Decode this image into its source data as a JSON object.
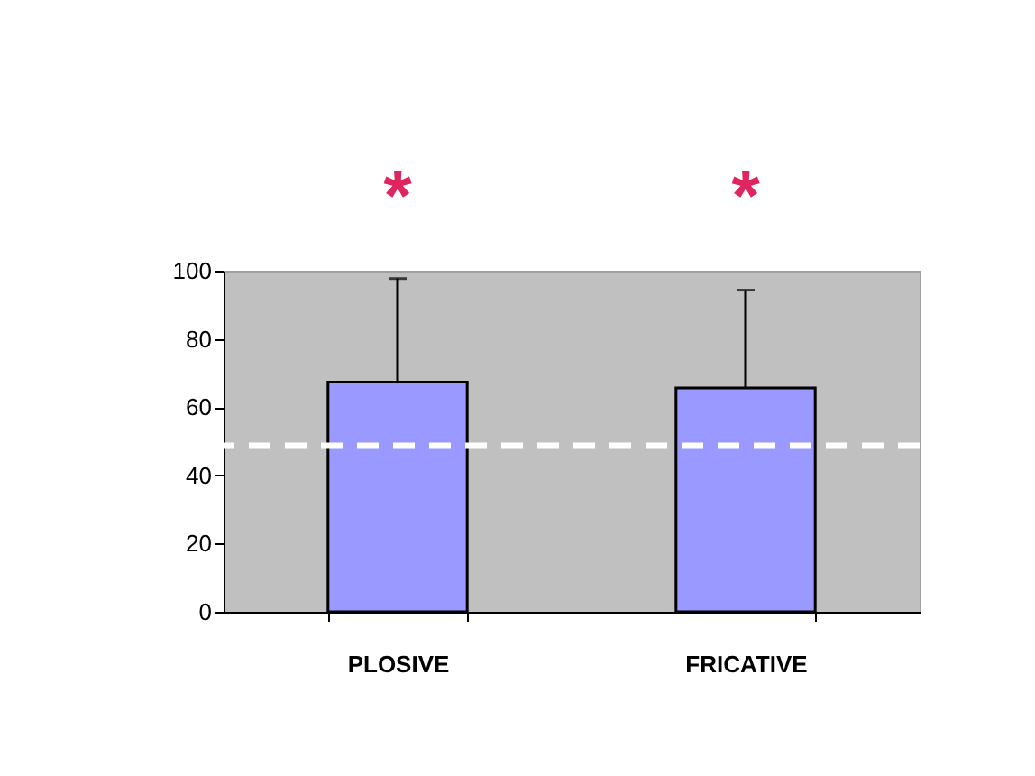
{
  "chart_data": {
    "type": "bar",
    "categories": [
      "PLOSIVE",
      "FRICATIVE"
    ],
    "values": [
      67.3,
      65.6
    ],
    "color": "#9999ff",
    "errors": [
      [
        67.3,
        97.7
      ],
      [
        65.6,
        94.3
      ]
    ],
    "ylim": [
      0,
      100
    ],
    "yticks": [
      0,
      20,
      40,
      60,
      80,
      100
    ],
    "grid": false,
    "ref_lines": [
      {
        "axis": "y",
        "value": 48.7,
        "color": "#ffffff",
        "line_style": "dashed"
      }
    ],
    "annotations": [
      "*",
      "*"
    ]
  }
}
